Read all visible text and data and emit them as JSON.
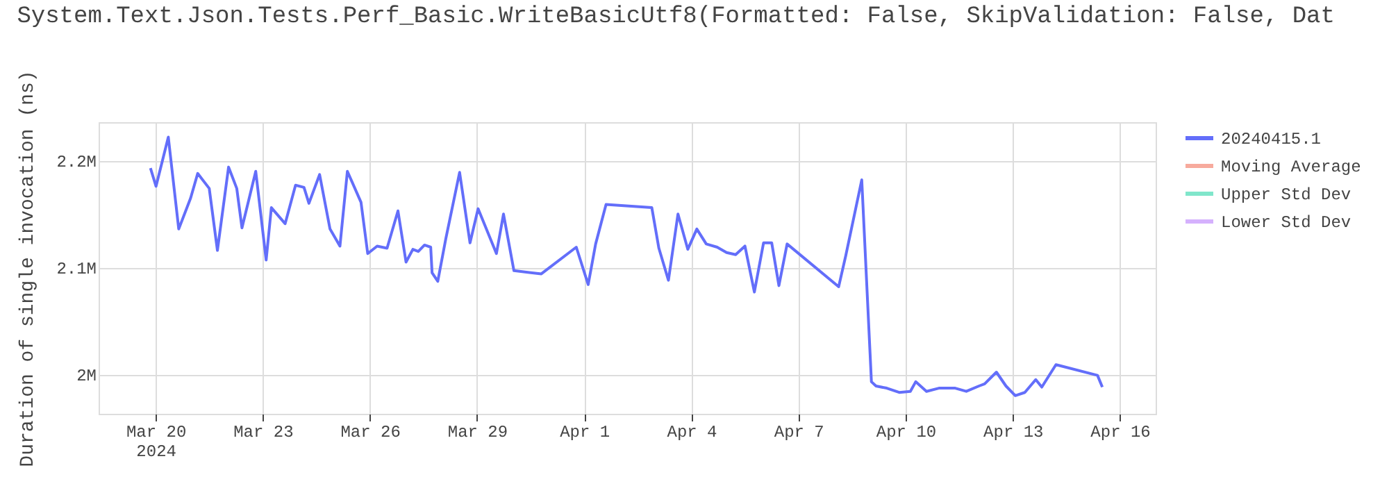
{
  "chart_data": {
    "type": "line",
    "title": "System.Text.Json.Tests.Perf_Basic.WriteBasicUtf8(Formatted: False, SkipValidation: False, Dat",
    "ylabel": "Duration of single invocation (ns)",
    "x": [
      "2024-03-19T20:30",
      "2024-03-20T00:15",
      "2024-03-20T08:30",
      "2024-03-20T15:30",
      "2024-03-20T23:30",
      "2024-03-21T04:15",
      "2024-03-21T12:00",
      "2024-03-21T17:30",
      "2024-03-22T01:00",
      "2024-03-22T06:30",
      "2024-03-22T10:00",
      "2024-03-22T19:15",
      "2024-03-23T02:15",
      "2024-03-23T05:45",
      "2024-03-23T15:00",
      "2024-03-23T22:00",
      "2024-03-24T03:40",
      "2024-03-24T07:00",
      "2024-03-24T14:10",
      "2024-03-24T21:10",
      "2024-03-25T03:50",
      "2024-03-25T08:50",
      "2024-03-25T18:00",
      "2024-03-25T22:30",
      "2024-03-26T04:50",
      "2024-03-26T11:30",
      "2024-03-26T18:50",
      "2024-03-27T00:15",
      "2024-03-27T04:50",
      "2024-03-27T08:30",
      "2024-03-27T12:40",
      "2024-03-27T16:50",
      "2024-03-27T17:45",
      "2024-03-27T21:35",
      "2024-03-28T03:00",
      "2024-03-28T12:15",
      "2024-03-28T19:15",
      "2024-03-29T00:40",
      "2024-03-29T13:00",
      "2024-03-29T17:45",
      "2024-03-30T00:45",
      "2024-03-30T19:10",
      "2024-03-31T18:40",
      "2024-04-01T02:40",
      "2024-04-01T07:40",
      "2024-04-01T14:40",
      "2024-04-02T21:25",
      "2024-04-03T02:10",
      "2024-04-03T08:35",
      "2024-04-03T15:00",
      "2024-04-03T21:35",
      "2024-04-04T03:40",
      "2024-04-04T10:00",
      "2024-04-04T17:20",
      "2024-04-04T23:40",
      "2024-04-05T05:45",
      "2024-04-05T12:00",
      "2024-04-05T18:20",
      "2024-04-06T00:30",
      "2024-04-06T06:00",
      "2024-04-06T10:50",
      "2024-04-06T16:20",
      "2024-04-08T03:00",
      "2024-04-08T07:45",
      "2024-04-08T18:30",
      "2024-04-09T01:00",
      "2024-04-09T04:05",
      "2024-04-09T11:20",
      "2024-04-09T19:40",
      "2024-04-10T03:10",
      "2024-04-10T06:45",
      "2024-04-10T14:00",
      "2024-04-10T22:20",
      "2024-04-11T09:20",
      "2024-04-11T16:45",
      "2024-04-12T01:15",
      "2024-04-12T05:05",
      "2024-04-12T13:00",
      "2024-04-12T19:25",
      "2024-04-13T01:40",
      "2024-04-13T08:05",
      "2024-04-13T15:25",
      "2024-04-13T19:30",
      "2024-04-14T05:00",
      "2024-04-15T08:55",
      "2024-04-15T12:10"
    ],
    "series": [
      {
        "name": "20240415.1",
        "color": "#636efa",
        "values": [
          2193000,
          2176000,
          2222000,
          2136000,
          2165000,
          2188000,
          2174000,
          2116000,
          2194000,
          2174000,
          2137000,
          2190000,
          2107000,
          2156000,
          2141000,
          2177000,
          2175000,
          2160000,
          2187000,
          2136000,
          2120000,
          2190000,
          2161000,
          2113000,
          2120000,
          2118000,
          2153000,
          2105000,
          2117000,
          2115000,
          2121000,
          2119000,
          2095000,
          2087000,
          2127000,
          2189000,
          2123000,
          2155000,
          2113000,
          2150000,
          2097000,
          2094000,
          2119000,
          2084000,
          2122000,
          2159000,
          2156000,
          2118000,
          2088000,
          2150000,
          2117000,
          2136000,
          2122000,
          2119000,
          2114000,
          2112000,
          2120000,
          2077000,
          2123000,
          2123000,
          2083000,
          2122000,
          2082000,
          2111000,
          2182000,
          1993000,
          1989000,
          1987000,
          1983000,
          1984000,
          1993000,
          1984000,
          1987000,
          1987000,
          1984000,
          1989000,
          1991000,
          2002000,
          1989000,
          1980000,
          1983000,
          1995000,
          1988000,
          2009000,
          1999000,
          1988000
        ]
      },
      {
        "name": "Moving Average",
        "color": "#f7aa9d",
        "values": [
          null,
          null,
          null,
          null,
          null,
          null,
          null,
          null,
          null,
          null,
          null,
          null,
          null,
          null,
          null,
          null,
          null,
          null,
          null,
          null,
          null,
          null,
          null,
          null,
          null,
          null,
          null,
          null,
          null,
          null,
          null,
          null,
          null,
          null,
          null,
          null,
          null,
          null,
          null,
          null,
          null,
          null,
          null,
          null,
          null,
          null,
          null,
          null,
          null,
          null,
          null,
          null,
          null,
          null,
          null,
          null,
          null,
          null,
          null,
          null,
          null,
          null,
          null,
          null,
          null,
          null,
          null,
          null,
          null,
          null,
          null,
          null,
          null,
          null,
          null,
          null,
          null,
          null,
          null,
          null,
          null,
          null,
          null,
          null,
          null,
          null
        ]
      },
      {
        "name": "Upper Std Dev",
        "color": "#80e6cb",
        "values": [
          null,
          null,
          null,
          null,
          null,
          null,
          null,
          null,
          null,
          null,
          null,
          null,
          null,
          null,
          null,
          null,
          null,
          null,
          null,
          null,
          null,
          null,
          null,
          null,
          null,
          null,
          null,
          null,
          null,
          null,
          null,
          null,
          null,
          null,
          null,
          null,
          null,
          null,
          null,
          null,
          null,
          null,
          null,
          null,
          null,
          null,
          null,
          null,
          null,
          null,
          null,
          null,
          null,
          null,
          null,
          null,
          null,
          null,
          null,
          null,
          null,
          null,
          null,
          null,
          null,
          null,
          null,
          null,
          null,
          null,
          null,
          null,
          null,
          null,
          null,
          null,
          null,
          null,
          null,
          null,
          null,
          null,
          null,
          null,
          null,
          null
        ]
      },
      {
        "name": "Lower Std Dev",
        "color": "#d5b1fd",
        "values": [
          null,
          null,
          null,
          null,
          null,
          null,
          null,
          null,
          null,
          null,
          null,
          null,
          null,
          null,
          null,
          null,
          null,
          null,
          null,
          null,
          null,
          null,
          null,
          null,
          null,
          null,
          null,
          null,
          null,
          null,
          null,
          null,
          null,
          null,
          null,
          null,
          null,
          null,
          null,
          null,
          null,
          null,
          null,
          null,
          null,
          null,
          null,
          null,
          null,
          null,
          null,
          null,
          null,
          null,
          null,
          null,
          null,
          null,
          null,
          null,
          null,
          null,
          null,
          null,
          null,
          null,
          null,
          null,
          null,
          null,
          null,
          null,
          null,
          null,
          null,
          null,
          null,
          null,
          null,
          null,
          null,
          null,
          null,
          null,
          null,
          null
        ]
      }
    ],
    "xlim": [
      "2024-03-18T09:40",
      "2024-04-17T00:00"
    ],
    "xticks": [
      {
        "value": "2024-03-20",
        "label": "Mar 20\n2024"
      },
      {
        "value": "2024-03-23",
        "label": "Mar 23"
      },
      {
        "value": "2024-03-26",
        "label": "Mar 26"
      },
      {
        "value": "2024-03-29",
        "label": "Mar 29"
      },
      {
        "value": "2024-04-01",
        "label": "Apr 1"
      },
      {
        "value": "2024-04-04",
        "label": "Apr 4"
      },
      {
        "value": "2024-04-07",
        "label": "Apr 7"
      },
      {
        "value": "2024-04-10",
        "label": "Apr 10"
      },
      {
        "value": "2024-04-13",
        "label": "Apr 13"
      },
      {
        "value": "2024-04-16",
        "label": "Apr 16"
      }
    ],
    "ylim": [
      1963000,
      2236000
    ],
    "yticks": [
      {
        "value": 2000000,
        "label": "2M"
      },
      {
        "value": 2100000,
        "label": "2.1M"
      },
      {
        "value": 2200000,
        "label": "2.2M"
      }
    ],
    "grid": true,
    "legend": "top right",
    "marker": "none",
    "line_style": "solid"
  }
}
